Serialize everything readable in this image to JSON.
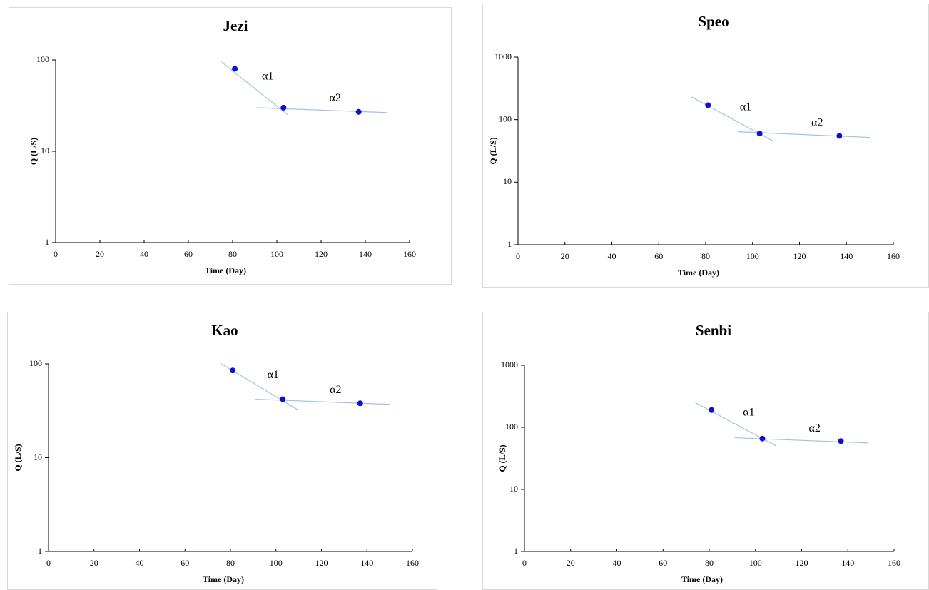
{
  "chart_data": [
    {
      "type": "scatter",
      "title": "Jezi",
      "xlabel": "Time (Day)",
      "ylabel": "Q (L/S)",
      "log_y": true,
      "xlim": [
        0,
        160
      ],
      "xticks": [
        0,
        20,
        40,
        60,
        80,
        100,
        120,
        140,
        160
      ],
      "ylim": [
        1,
        100
      ],
      "yticks": [
        1,
        10,
        100
      ],
      "x": [
        81,
        103,
        137
      ],
      "values": [
        80,
        30,
        27
      ],
      "color": "#1010c8",
      "trendlines": [
        {
          "label": "α1",
          "x": [
            75,
            105
          ],
          "values": [
            95,
            25
          ],
          "color": "#9dc3e6"
        },
        {
          "label": "α2",
          "x": [
            91,
            150
          ],
          "values": [
            30,
            26.5
          ],
          "color": "#9dc3e6"
        }
      ]
    },
    {
      "type": "scatter",
      "title": "Speo",
      "xlabel": "Time (Day)",
      "ylabel": "Q (L/S)",
      "log_y": true,
      "xlim": [
        0,
        160
      ],
      "xticks": [
        0,
        20,
        40,
        60,
        80,
        100,
        120,
        140,
        160
      ],
      "ylim": [
        1,
        1000
      ],
      "yticks": [
        1,
        10,
        100,
        1000
      ],
      "x": [
        81,
        103,
        137
      ],
      "values": [
        170,
        60,
        55
      ],
      "color": "#1010c8",
      "trendlines": [
        {
          "label": "α1",
          "x": [
            74,
            109
          ],
          "values": [
            230,
            45
          ],
          "color": "#9dc3e6"
        },
        {
          "label": "α2",
          "x": [
            94,
            150
          ],
          "values": [
            64,
            52
          ],
          "color": "#9dc3e6"
        }
      ]
    },
    {
      "type": "scatter",
      "title": "Kao",
      "xlabel": "Time (Day)",
      "ylabel": "Q (L/S)",
      "log_y": true,
      "xlim": [
        0,
        160
      ],
      "xticks": [
        0,
        20,
        40,
        60,
        80,
        100,
        120,
        140,
        160
      ],
      "ylim": [
        1,
        100
      ],
      "yticks": [
        1,
        10,
        100
      ],
      "x": [
        81,
        103,
        137
      ],
      "values": [
        85,
        42,
        38
      ],
      "color": "#1010c8",
      "trendlines": [
        {
          "label": "α1",
          "x": [
            76,
            110
          ],
          "values": [
            100,
            32
          ],
          "color": "#9dc3e6"
        },
        {
          "label": "α2",
          "x": [
            91,
            150
          ],
          "values": [
            42,
            37
          ],
          "color": "#9dc3e6"
        }
      ]
    },
    {
      "type": "scatter",
      "title": "Senbi",
      "xlabel": "Time (Day)",
      "ylabel": "Q (L/S)",
      "log_y": true,
      "xlim": [
        0,
        160
      ],
      "xticks": [
        0,
        20,
        40,
        60,
        80,
        100,
        120,
        140,
        160
      ],
      "ylim": [
        1,
        1000
      ],
      "yticks": [
        1,
        10,
        100,
        1000
      ],
      "x": [
        81,
        103,
        137
      ],
      "values": [
        190,
        66,
        60
      ],
      "color": "#1010c8",
      "trendlines": [
        {
          "label": "α1",
          "x": [
            74,
            109
          ],
          "values": [
            250,
            50
          ],
          "color": "#9dc3e6"
        },
        {
          "label": "α2",
          "x": [
            91,
            149
          ],
          "values": [
            68,
            56
          ],
          "color": "#9dc3e6"
        }
      ]
    }
  ]
}
